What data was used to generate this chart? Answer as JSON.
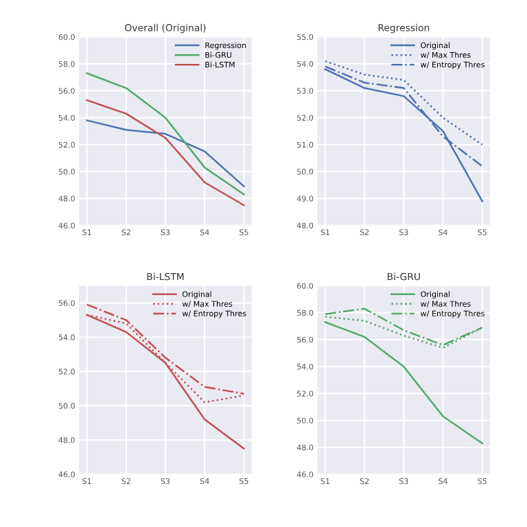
{
  "chart_data": [
    {
      "type": "line",
      "title": "Overall (Original)",
      "categories": [
        "S1",
        "S2",
        "S3",
        "S4",
        "S5"
      ],
      "ylim": [
        46,
        60
      ],
      "yticks": [
        {
          "value": 46,
          "label": "46.0"
        },
        {
          "value": 48,
          "label": "48.0"
        },
        {
          "value": 50,
          "label": "50.0"
        },
        {
          "value": 52,
          "label": "52.0"
        },
        {
          "value": 54,
          "label": "54.0"
        },
        {
          "value": 56,
          "label": "56.0"
        },
        {
          "value": 58,
          "label": "58.0"
        },
        {
          "value": 60,
          "label": "60.0"
        }
      ],
      "grid": true,
      "legend": "top right",
      "series": [
        {
          "name": "Regression",
          "color": "#4c72b0",
          "line_style": "solid",
          "values": [
            53.8,
            53.1,
            52.8,
            51.5,
            48.9
          ]
        },
        {
          "name": "Bi-GRU",
          "color": "#55a868",
          "line_style": "solid",
          "values": [
            57.3,
            56.2,
            54.0,
            50.3,
            48.3
          ]
        },
        {
          "name": "Bi-LSTM",
          "color": "#c44e52",
          "line_style": "solid",
          "values": [
            55.3,
            54.3,
            52.5,
            49.2,
            47.5
          ]
        }
      ]
    },
    {
      "type": "line",
      "title": "Regression",
      "categories": [
        "S1",
        "S2",
        "S3",
        "S4",
        "S5"
      ],
      "ylim": [
        48,
        55
      ],
      "yticks": [
        {
          "value": 48,
          "label": "48.0"
        },
        {
          "value": 49,
          "label": "49.0"
        },
        {
          "value": 50,
          "label": "50.0"
        },
        {
          "value": 51,
          "label": "51.0"
        },
        {
          "value": 52,
          "label": "52.0"
        },
        {
          "value": 53,
          "label": "53.0"
        },
        {
          "value": 54,
          "label": "54.0"
        },
        {
          "value": 55,
          "label": "55.0"
        }
      ],
      "grid": true,
      "legend": "top right",
      "series": [
        {
          "name": "Original",
          "color": "#4c72b0",
          "line_style": "solid",
          "values": [
            53.8,
            53.1,
            52.8,
            51.5,
            48.9
          ]
        },
        {
          "name": "w/ Max Thres",
          "color": "#4c72b0",
          "line_style": "dotted",
          "values": [
            54.1,
            53.6,
            53.4,
            52.0,
            51.0
          ]
        },
        {
          "name": "w/ Entropy Thres",
          "color": "#4c72b0",
          "line_style": "dashdot",
          "values": [
            53.9,
            53.3,
            53.1,
            51.3,
            50.2
          ]
        }
      ]
    },
    {
      "type": "line",
      "title": "Bi-LSTM",
      "categories": [
        "S1",
        "S2",
        "S3",
        "S4",
        "S5"
      ],
      "ylim": [
        46,
        57
      ],
      "yticks": [
        {
          "value": 46,
          "label": "46.0"
        },
        {
          "value": 48,
          "label": "48.0"
        },
        {
          "value": 50,
          "label": "50.0"
        },
        {
          "value": 52,
          "label": "52.0"
        },
        {
          "value": 54,
          "label": "54.0"
        },
        {
          "value": 56,
          "label": "56.0"
        }
      ],
      "grid": true,
      "legend": "top right",
      "series": [
        {
          "name": "Original",
          "color": "#c44e52",
          "line_style": "solid",
          "values": [
            55.3,
            54.3,
            52.5,
            49.2,
            47.5
          ]
        },
        {
          "name": "w/ Max Thres",
          "color": "#c44e52",
          "line_style": "dotted",
          "values": [
            55.3,
            54.8,
            52.5,
            50.2,
            50.6
          ]
        },
        {
          "name": "w/ Entropy Thres",
          "color": "#c44e52",
          "line_style": "dashdot",
          "values": [
            55.9,
            55.0,
            52.8,
            51.1,
            50.7
          ]
        }
      ]
    },
    {
      "type": "line",
      "title": "Bi-GRU",
      "categories": [
        "S1",
        "S2",
        "S3",
        "S4",
        "S5"
      ],
      "ylim": [
        46,
        60
      ],
      "yticks": [
        {
          "value": 46,
          "label": "46.0"
        },
        {
          "value": 48,
          "label": "48.0"
        },
        {
          "value": 50,
          "label": "50.0"
        },
        {
          "value": 52,
          "label": "52.0"
        },
        {
          "value": 54,
          "label": "54.0"
        },
        {
          "value": 56,
          "label": "56.0"
        },
        {
          "value": 58,
          "label": "58.0"
        },
        {
          "value": 60,
          "label": "60.0"
        }
      ],
      "grid": true,
      "legend": "top right",
      "series": [
        {
          "name": "Original",
          "color": "#55a868",
          "line_style": "solid",
          "values": [
            57.3,
            56.2,
            54.0,
            50.3,
            48.3
          ]
        },
        {
          "name": "w/ Max Thres",
          "color": "#55a868",
          "line_style": "dotted",
          "values": [
            57.7,
            57.4,
            56.3,
            55.4,
            56.9
          ]
        },
        {
          "name": "w/ Entropy Thres",
          "color": "#55a868",
          "line_style": "dashdot",
          "values": [
            57.9,
            58.3,
            56.7,
            55.6,
            56.9
          ]
        }
      ]
    }
  ]
}
